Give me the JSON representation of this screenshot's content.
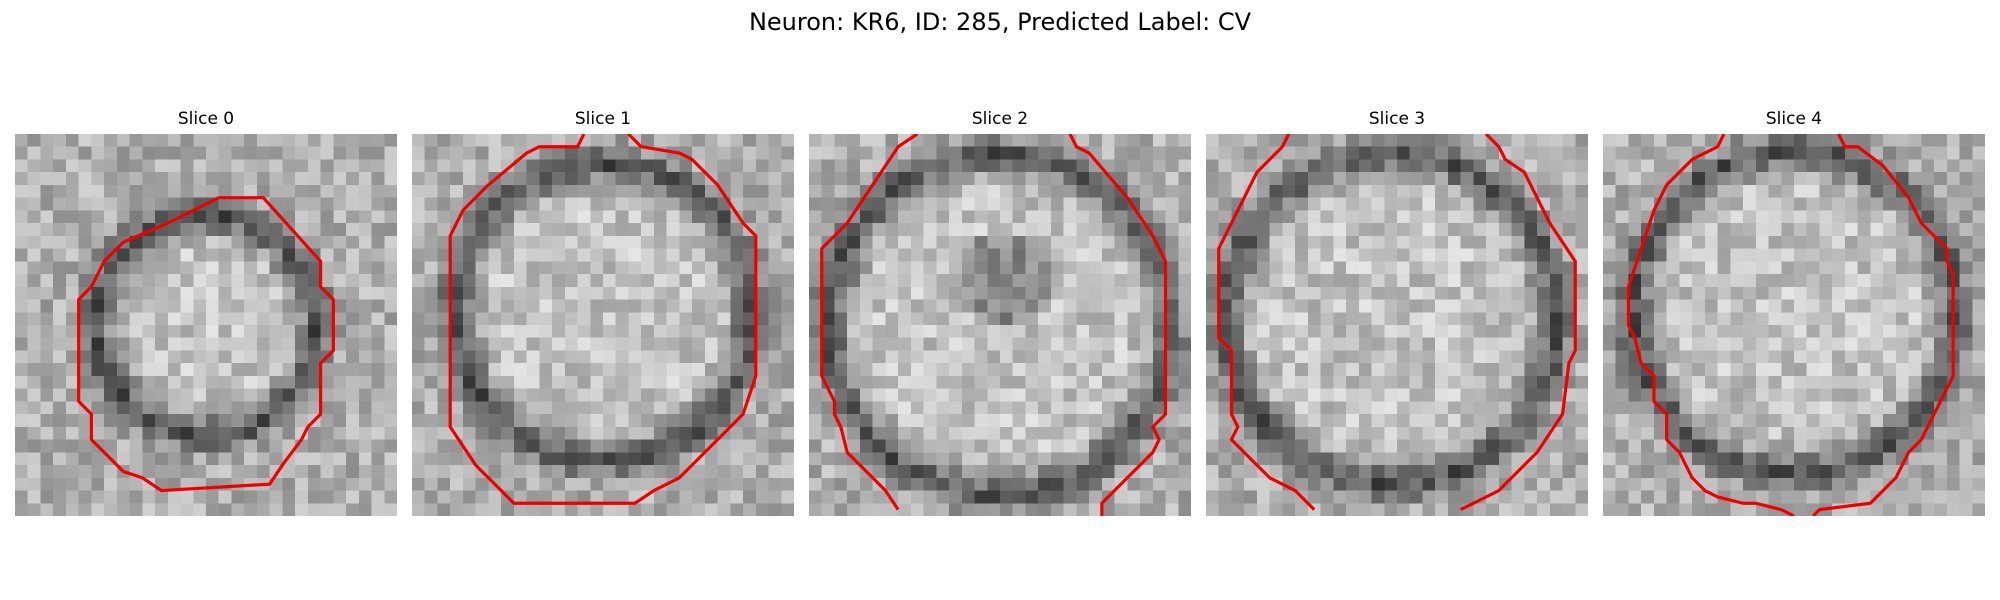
{
  "figure": {
    "suptitle": "Neuron: KR6, ID: 285, Predicted Label: CV",
    "colors": {
      "contour": "#ee0000",
      "background": "#ffffff"
    },
    "colormap": "gray",
    "panels": [
      {
        "title": "Slice 0"
      },
      {
        "title": "Slice 1"
      },
      {
        "title": "Slice 2"
      },
      {
        "title": "Slice 3"
      },
      {
        "title": "Slice 4"
      }
    ]
  }
}
